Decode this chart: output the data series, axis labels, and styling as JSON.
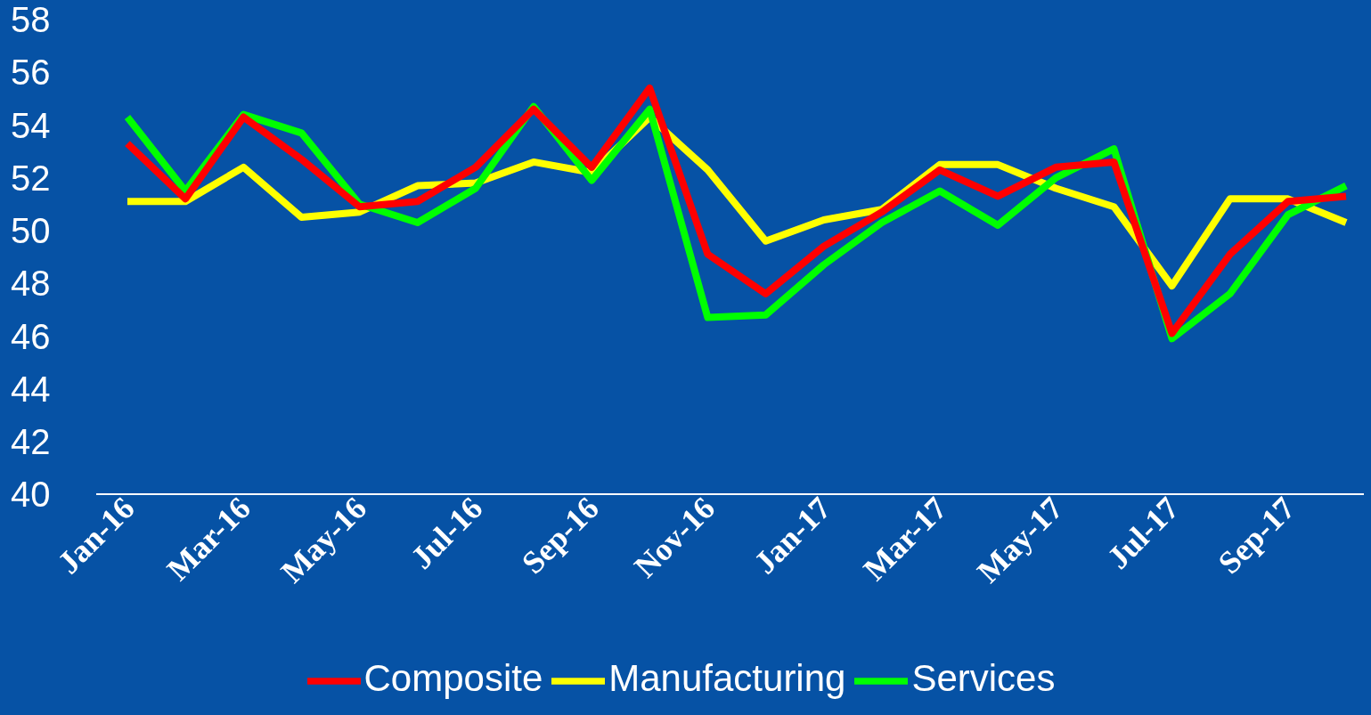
{
  "chart_data": {
    "type": "line",
    "categories": [
      "Jan-16",
      null,
      "Mar-16",
      null,
      "May-16",
      null,
      "Jul-16",
      null,
      "Sep-16",
      null,
      "Nov-16",
      null,
      "Jan-17",
      null,
      "Mar-17",
      null,
      "May-17",
      null,
      "Jul-17",
      null,
      "Sep-17",
      null
    ],
    "series": [
      {
        "name": "Manufacturing",
        "color": "#ffff00",
        "values": [
          51.1,
          51.1,
          52.4,
          50.5,
          50.7,
          51.7,
          51.8,
          52.6,
          52.2,
          54.3,
          52.3,
          49.6,
          50.4,
          50.8,
          52.5,
          52.5,
          51.6,
          50.9,
          47.9,
          51.2,
          51.2,
          50.3
        ]
      },
      {
        "name": "Services",
        "color": "#00ff00",
        "values": [
          54.3,
          51.5,
          54.4,
          53.7,
          51.0,
          50.3,
          51.6,
          54.7,
          51.9,
          54.6,
          46.7,
          46.8,
          48.7,
          50.3,
          51.5,
          50.2,
          52.0,
          53.1,
          45.9,
          47.6,
          50.6,
          51.7
        ]
      },
      {
        "name": "Composite",
        "color": "#ff0000",
        "values": [
          53.3,
          51.2,
          54.3,
          52.7,
          50.9,
          51.1,
          52.4,
          54.6,
          52.4,
          55.4,
          49.1,
          47.6,
          49.4,
          50.7,
          52.3,
          51.3,
          52.4,
          52.6,
          46.1,
          49.1,
          51.1,
          51.3
        ]
      }
    ],
    "ylim": [
      40,
      58
    ],
    "yticks": [
      40,
      42,
      44,
      46,
      48,
      50,
      52,
      54,
      56,
      58
    ],
    "grid": false,
    "legend": "bottom"
  }
}
